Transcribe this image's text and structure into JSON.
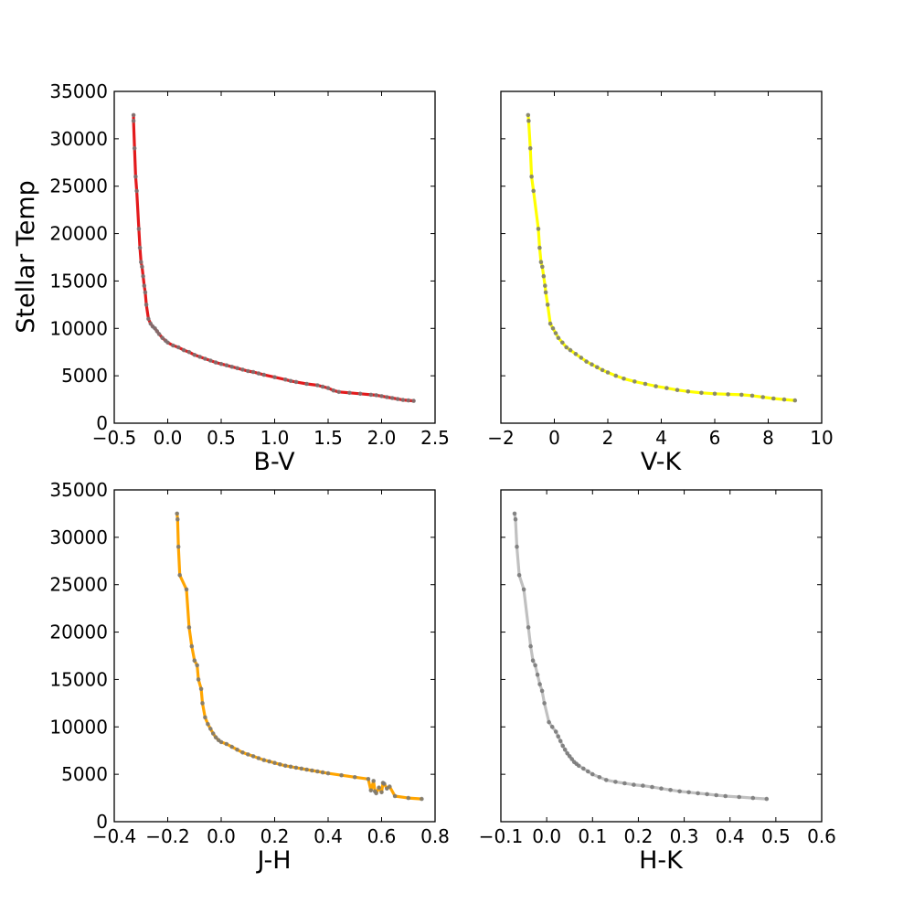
{
  "figure": {
    "background": "#ffffff"
  },
  "chart_data": [
    {
      "type": "line",
      "ylabel": "Stellar Temp",
      "xlabel": "B-V",
      "xlim": [
        -0.5,
        2.5
      ],
      "ylim": [
        0,
        35000
      ],
      "xticks": [
        "−0.5",
        "0.0",
        "0.5",
        "1.0",
        "1.5",
        "2.0",
        "2.5"
      ],
      "xtick_values": [
        -0.5,
        0.0,
        0.5,
        1.0,
        1.5,
        2.0,
        2.5
      ],
      "yticks": [
        "0",
        "5000",
        "10000",
        "15000",
        "20000",
        "25000",
        "30000",
        "35000"
      ],
      "ytick_values": [
        0,
        5000,
        10000,
        15000,
        20000,
        25000,
        30000,
        35000
      ],
      "show_yticklabels": true,
      "grid": false,
      "line_color": "#e31a1c",
      "marker_color": "#777777",
      "series": [
        {
          "x": [
            -0.32,
            -0.32,
            -0.31,
            -0.3,
            -0.29,
            -0.27,
            -0.26,
            -0.25,
            -0.24,
            -0.23,
            -0.22,
            -0.21,
            -0.2,
            -0.18,
            -0.16,
            -0.14,
            -0.12,
            -0.1,
            -0.08,
            -0.05,
            -0.02,
            0.0,
            0.05,
            0.1,
            0.15,
            0.2,
            0.25,
            0.3,
            0.35,
            0.4,
            0.45,
            0.5,
            0.55,
            0.6,
            0.65,
            0.7,
            0.75,
            0.8,
            0.85,
            0.9,
            1.0,
            1.1,
            1.15,
            1.2,
            1.3,
            1.4,
            1.45,
            1.5,
            1.55,
            1.6,
            1.7,
            1.8,
            1.9,
            1.95,
            2.0,
            2.05,
            2.1,
            2.15,
            2.2,
            2.25,
            2.3
          ],
          "y": [
            32500,
            31900,
            29000,
            26000,
            24500,
            20500,
            18500,
            17000,
            16500,
            15500,
            14500,
            13800,
            12500,
            11000,
            10500,
            10200,
            10000,
            9700,
            9400,
            9000,
            8700,
            8500,
            8200,
            8000,
            7700,
            7500,
            7200,
            7000,
            6800,
            6600,
            6400,
            6250,
            6100,
            5950,
            5800,
            5650,
            5500,
            5400,
            5250,
            5100,
            4850,
            4600,
            4450,
            4350,
            4150,
            4000,
            3850,
            3700,
            3450,
            3300,
            3200,
            3100,
            3000,
            2950,
            2850,
            2750,
            2650,
            2550,
            2450,
            2400,
            2350
          ]
        }
      ]
    },
    {
      "type": "line",
      "xlabel": "V-K",
      "xlim": [
        -2,
        10
      ],
      "ylim": [
        0,
        35000
      ],
      "xticks": [
        "−2",
        "0",
        "2",
        "4",
        "6",
        "8",
        "10"
      ],
      "xtick_values": [
        -2,
        0,
        2,
        4,
        6,
        8,
        10
      ],
      "yticks": [
        "0",
        "5000",
        "10000",
        "15000",
        "20000",
        "25000",
        "30000",
        "35000"
      ],
      "ytick_values": [
        0,
        5000,
        10000,
        15000,
        20000,
        25000,
        30000,
        35000
      ],
      "show_yticklabels": false,
      "grid": false,
      "line_color": "#ffff00",
      "marker_color": "#777777",
      "series": [
        {
          "x": [
            -0.98,
            -0.96,
            -0.9,
            -0.85,
            -0.78,
            -0.6,
            -0.55,
            -0.5,
            -0.45,
            -0.4,
            -0.35,
            -0.32,
            -0.25,
            -0.15,
            -0.05,
            0.05,
            0.15,
            0.3,
            0.45,
            0.6,
            0.8,
            1.0,
            1.2,
            1.4,
            1.6,
            1.8,
            2.0,
            2.3,
            2.6,
            3.0,
            3.4,
            3.8,
            4.2,
            4.6,
            5.0,
            5.5,
            6.0,
            6.5,
            7.0,
            7.4,
            7.8,
            8.2,
            8.6,
            9.0
          ],
          "y": [
            32500,
            31900,
            29000,
            26000,
            24500,
            20500,
            18500,
            17000,
            16500,
            15500,
            14500,
            13800,
            12500,
            10500,
            10000,
            9500,
            9000,
            8500,
            8000,
            7700,
            7300,
            6900,
            6500,
            6200,
            5900,
            5600,
            5350,
            5000,
            4700,
            4400,
            4150,
            3900,
            3700,
            3500,
            3350,
            3200,
            3100,
            3050,
            3000,
            2900,
            2750,
            2600,
            2500,
            2400
          ]
        }
      ]
    },
    {
      "type": "line",
      "xlabel": "J-H",
      "xlim": [
        -0.4,
        0.8
      ],
      "ylim": [
        0,
        35000
      ],
      "xticks": [
        "−0.4",
        "−0.2",
        "0.0",
        "0.2",
        "0.4",
        "0.6",
        "0.8"
      ],
      "xtick_values": [
        -0.4,
        -0.2,
        0.0,
        0.2,
        0.4,
        0.6,
        0.8
      ],
      "yticks": [
        "0",
        "5000",
        "10000",
        "15000",
        "20000",
        "25000",
        "30000",
        "35000"
      ],
      "ytick_values": [
        0,
        5000,
        10000,
        15000,
        20000,
        25000,
        30000,
        35000
      ],
      "show_yticklabels": true,
      "grid": false,
      "line_color": "#ffa500",
      "marker_color": "#777777",
      "series": [
        {
          "x": [
            -0.165,
            -0.163,
            -0.16,
            -0.155,
            -0.13,
            -0.12,
            -0.11,
            -0.1,
            -0.09,
            -0.085,
            -0.075,
            -0.07,
            -0.06,
            -0.05,
            -0.04,
            -0.03,
            -0.02,
            -0.01,
            0.0,
            0.02,
            0.04,
            0.06,
            0.08,
            0.1,
            0.12,
            0.14,
            0.16,
            0.18,
            0.2,
            0.22,
            0.24,
            0.26,
            0.28,
            0.3,
            0.32,
            0.34,
            0.36,
            0.38,
            0.4,
            0.45,
            0.5,
            0.55,
            0.56,
            0.57,
            0.575,
            0.58,
            0.59,
            0.6,
            0.605,
            0.61,
            0.62,
            0.63,
            0.65,
            0.7,
            0.75
          ],
          "y": [
            32500,
            31900,
            29000,
            26000,
            24500,
            20500,
            18500,
            17000,
            16500,
            15000,
            14000,
            12500,
            11000,
            10300,
            9800,
            9300,
            8900,
            8600,
            8400,
            8200,
            7900,
            7600,
            7300,
            7100,
            6900,
            6700,
            6500,
            6350,
            6200,
            6050,
            5900,
            5800,
            5700,
            5600,
            5500,
            5400,
            5300,
            5200,
            5100,
            4900,
            4700,
            4500,
            3300,
            4300,
            3200,
            3000,
            3600,
            3100,
            4100,
            4000,
            3500,
            3700,
            2700,
            2500,
            2400
          ]
        }
      ]
    },
    {
      "type": "line",
      "xlabel": "H-K",
      "xlim": [
        -0.1,
        0.6
      ],
      "ylim": [
        0,
        35000
      ],
      "xticks": [
        "−0.1",
        "0.0",
        "0.1",
        "0.2",
        "0.3",
        "0.4",
        "0.5",
        "0.6"
      ],
      "xtick_values": [
        -0.1,
        0.0,
        0.1,
        0.2,
        0.3,
        0.4,
        0.5,
        0.6
      ],
      "yticks": [
        "0",
        "5000",
        "10000",
        "15000",
        "20000",
        "25000",
        "30000",
        "35000"
      ],
      "ytick_values": [
        0,
        5000,
        10000,
        15000,
        20000,
        25000,
        30000,
        35000
      ],
      "show_yticklabels": false,
      "grid": false,
      "line_color": "#c0c0c0",
      "marker_color": "#777777",
      "series": [
        {
          "x": [
            -0.07,
            -0.068,
            -0.065,
            -0.06,
            -0.05,
            -0.04,
            -0.035,
            -0.03,
            -0.025,
            -0.02,
            -0.015,
            -0.01,
            -0.005,
            0.005,
            0.012,
            0.02,
            0.025,
            0.03,
            0.035,
            0.04,
            0.045,
            0.05,
            0.055,
            0.06,
            0.065,
            0.07,
            0.08,
            0.09,
            0.1,
            0.115,
            0.13,
            0.15,
            0.17,
            0.19,
            0.21,
            0.23,
            0.25,
            0.27,
            0.29,
            0.31,
            0.33,
            0.35,
            0.37,
            0.39,
            0.42,
            0.45,
            0.48
          ],
          "y": [
            32500,
            31900,
            29000,
            26000,
            24500,
            20500,
            18500,
            17000,
            16500,
            15500,
            14500,
            13800,
            12500,
            10500,
            10000,
            9500,
            9000,
            8500,
            8000,
            7600,
            7200,
            6900,
            6600,
            6300,
            6100,
            5900,
            5600,
            5300,
            5000,
            4700,
            4400,
            4200,
            4050,
            3900,
            3800,
            3650,
            3500,
            3350,
            3200,
            3100,
            3000,
            2900,
            2800,
            2700,
            2600,
            2500,
            2400
          ]
        }
      ]
    }
  ]
}
